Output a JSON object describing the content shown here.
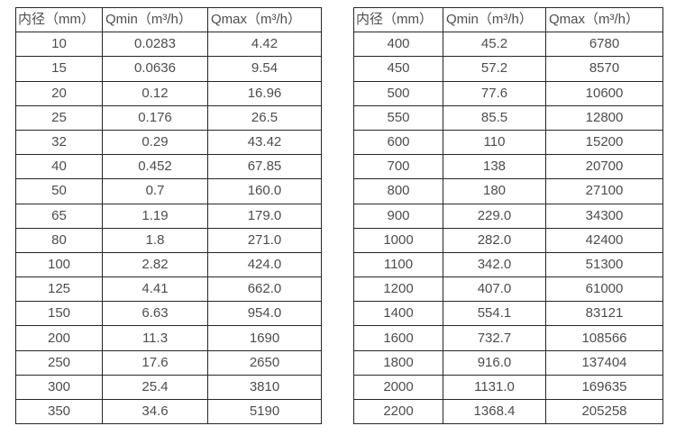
{
  "colors": {
    "background": "#ffffff",
    "border": "#262626",
    "text": "#4d4d4d"
  },
  "tables": [
    {
      "id": "small-diameters",
      "headers": [
        "内径（mm）",
        "Qmin（m³/h）",
        "Qmax（m³/h）"
      ],
      "rows": [
        [
          "10",
          "0.0283",
          "4.42"
        ],
        [
          "15",
          "0.0636",
          "9.54"
        ],
        [
          "20",
          "0.12",
          "16.96"
        ],
        [
          "25",
          "0.176",
          "26.5"
        ],
        [
          "32",
          "0.29",
          "43.42"
        ],
        [
          "40",
          "0.452",
          "67.85"
        ],
        [
          "50",
          "0.7",
          "160.0"
        ],
        [
          "65",
          "1.19",
          "179.0"
        ],
        [
          "80",
          "1.8",
          "271.0"
        ],
        [
          "100",
          "2.82",
          "424.0"
        ],
        [
          "125",
          "4.41",
          "662.0"
        ],
        [
          "150",
          "6.63",
          "954.0"
        ],
        [
          "200",
          "11.3",
          "1690"
        ],
        [
          "250",
          "17.6",
          "2650"
        ],
        [
          "300",
          "25.4",
          "3810"
        ],
        [
          "350",
          "34.6",
          "5190"
        ]
      ]
    },
    {
      "id": "large-diameters",
      "headers": [
        "内径（mm）",
        "Qmin（m³/h）",
        "Qmax（m³/h）"
      ],
      "rows": [
        [
          "400",
          "45.2",
          "6780"
        ],
        [
          "450",
          "57.2",
          "8570"
        ],
        [
          "500",
          "77.6",
          "10600"
        ],
        [
          "550",
          "85.5",
          "12800"
        ],
        [
          "600",
          "110",
          "15200"
        ],
        [
          "700",
          "138",
          "20700"
        ],
        [
          "800",
          "180",
          "27100"
        ],
        [
          "900",
          "229.0",
          "34300"
        ],
        [
          "1000",
          "282.0",
          "42400"
        ],
        [
          "1100",
          "342.0",
          "51300"
        ],
        [
          "1200",
          "407.0",
          "61000"
        ],
        [
          "1400",
          "554.1",
          "83121"
        ],
        [
          "1600",
          "732.7",
          "108566"
        ],
        [
          "1800",
          "916.0",
          "137404"
        ],
        [
          "2000",
          "1131.0",
          "169635"
        ],
        [
          "2200",
          "1368.4",
          "205258"
        ]
      ]
    }
  ]
}
